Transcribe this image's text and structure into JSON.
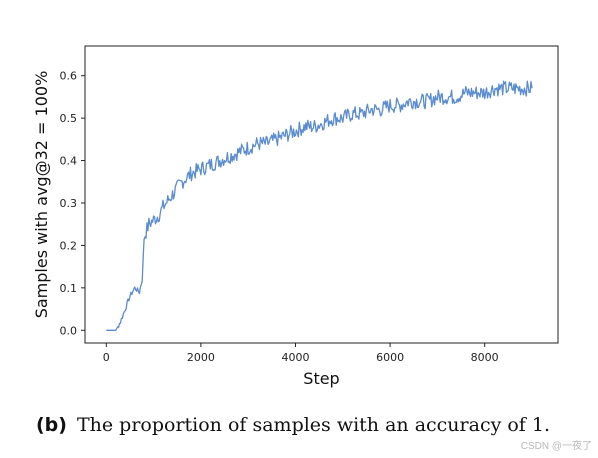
{
  "chart_data": {
    "type": "line",
    "title": "",
    "xlabel": "Step",
    "ylabel": "Samples with avg@32 = 100%",
    "xlim": [
      -450,
      9550
    ],
    "ylim": [
      -0.03,
      0.67
    ],
    "xticks": [
      0,
      2000,
      4000,
      6000,
      8000
    ],
    "yticks": [
      0.0,
      0.1,
      0.2,
      0.3,
      0.4,
      0.5,
      0.6
    ],
    "grid": false,
    "color": "#5b8bd0",
    "series": [
      {
        "x": [
          0,
          200,
          300,
          400,
          500,
          600,
          700,
          760,
          800,
          900,
          1000,
          1100,
          1200,
          1400,
          1600,
          1800,
          2000,
          2200,
          2400,
          2600,
          2800,
          3000,
          3200,
          3400,
          3600,
          3800,
          4000,
          4200,
          4400,
          4600,
          4800,
          5000,
          5200,
          5400,
          5600,
          5800,
          6000,
          6200,
          6400,
          6600,
          6800,
          7000,
          7200,
          7400,
          7600,
          7800,
          8000,
          8200,
          8400,
          8600,
          8800,
          9000
        ],
        "y": [
          0.0,
          0.0,
          0.02,
          0.05,
          0.08,
          0.1,
          0.09,
          0.12,
          0.22,
          0.25,
          0.26,
          0.27,
          0.29,
          0.32,
          0.35,
          0.37,
          0.38,
          0.39,
          0.4,
          0.41,
          0.42,
          0.43,
          0.44,
          0.44,
          0.45,
          0.46,
          0.47,
          0.48,
          0.48,
          0.49,
          0.5,
          0.5,
          0.51,
          0.51,
          0.52,
          0.52,
          0.53,
          0.53,
          0.54,
          0.54,
          0.54,
          0.55,
          0.55,
          0.55,
          0.56,
          0.56,
          0.56,
          0.57,
          0.57,
          0.57,
          0.57,
          0.57
        ]
      }
    ]
  },
  "caption": {
    "tag": "(b)",
    "text": "The proportion of samples with an accuracy of 1."
  },
  "watermark": "CSDN @一夜了"
}
